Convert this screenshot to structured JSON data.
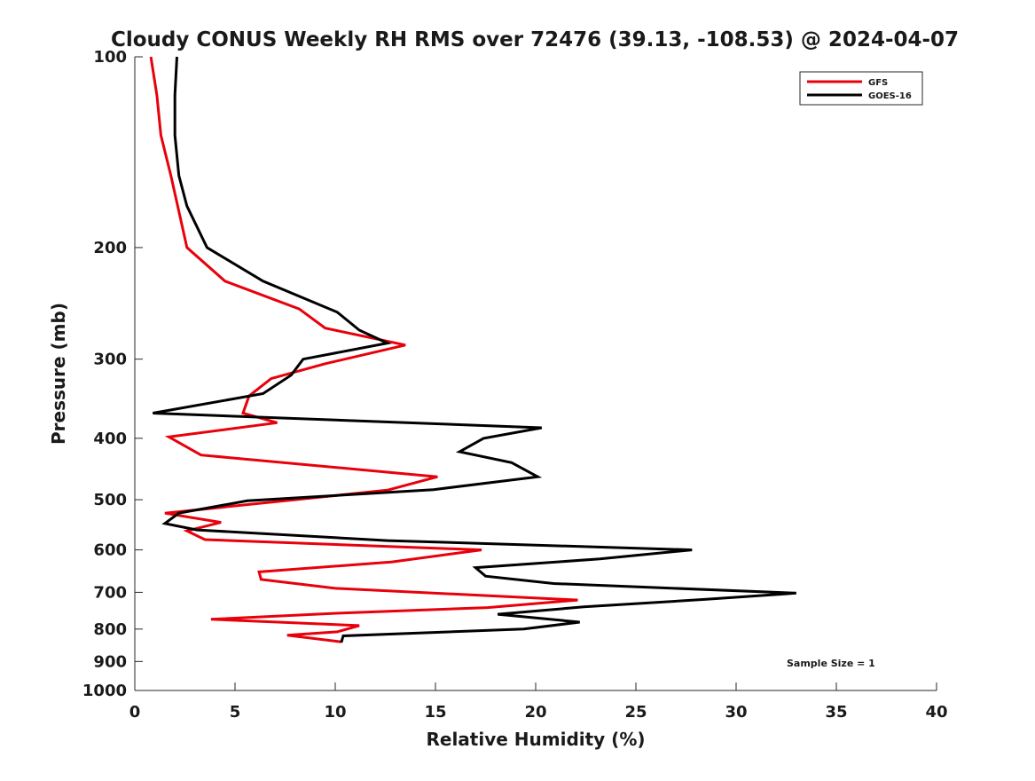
{
  "chart_data": {
    "type": "line",
    "title": "Cloudy CONUS Weekly RH RMS over 72476 (39.13, -108.53) @ 2024-04-07",
    "xlabel": "Relative Humidity (%)",
    "ylabel": "Pressure (mb)",
    "xlim": [
      0,
      40
    ],
    "ylim": [
      100,
      1000
    ],
    "y_scale": "log",
    "y_reversed": true,
    "grid": false,
    "legend_position": "top-right",
    "x_ticks": [
      "0",
      "5",
      "10",
      "15",
      "20",
      "25",
      "30",
      "35",
      "40"
    ],
    "y_ticks": [
      "100",
      "200",
      "300",
      "400",
      "500",
      "600",
      "700",
      "800",
      "900",
      "1000"
    ],
    "annotation": "Sample Size = 1",
    "series": [
      {
        "name": "GFS",
        "color": "#e8000b",
        "x": [
          0.8,
          1.1,
          1.3,
          1.8,
          2.6,
          4.5,
          8.2,
          9.5,
          13.5,
          9.5,
          6.8,
          5.7,
          5.4,
          7.1,
          1.7,
          3.3,
          15.1,
          12.6,
          1.5,
          4.3,
          2.6,
          3.5,
          17.3,
          12.8,
          6.2,
          6.3,
          10.0,
          22.1,
          17.6,
          10.2,
          3.8,
          11.2,
          10.1,
          7.6,
          10.3
        ],
        "y": [
          100,
          115,
          133,
          154,
          200,
          226,
          250,
          268,
          285,
          305,
          322,
          343,
          365,
          378,
          398,
          425,
          460,
          483,
          525,
          543,
          560,
          578,
          600,
          627,
          650,
          668,
          690,
          720,
          740,
          755,
          772,
          790,
          808,
          818,
          838
        ]
      },
      {
        "name": "GOES-16",
        "color": "#000000",
        "x": [
          2.1,
          2.0,
          2.0,
          2.2,
          2.6,
          3.6,
          6.4,
          10.1,
          11.2,
          12.6,
          8.4,
          7.8,
          6.4,
          0.9,
          20.3,
          17.4,
          16.2,
          18.8,
          20.1,
          14.9,
          5.6,
          2.2,
          1.5,
          3.1,
          12.6,
          27.8,
          23.2,
          17.0,
          17.5,
          20.9,
          33.0,
          28.5,
          22.4,
          18.1,
          22.2,
          19.4,
          10.4,
          10.3
        ],
        "y": [
          100,
          115,
          133,
          154,
          172,
          200,
          226,
          253,
          270,
          283,
          300,
          318,
          340,
          365,
          385,
          400,
          420,
          437,
          460,
          482,
          502,
          525,
          545,
          558,
          580,
          600,
          620,
          640,
          660,
          678,
          702,
          718,
          738,
          758,
          780,
          800,
          820,
          840
        ]
      }
    ]
  }
}
